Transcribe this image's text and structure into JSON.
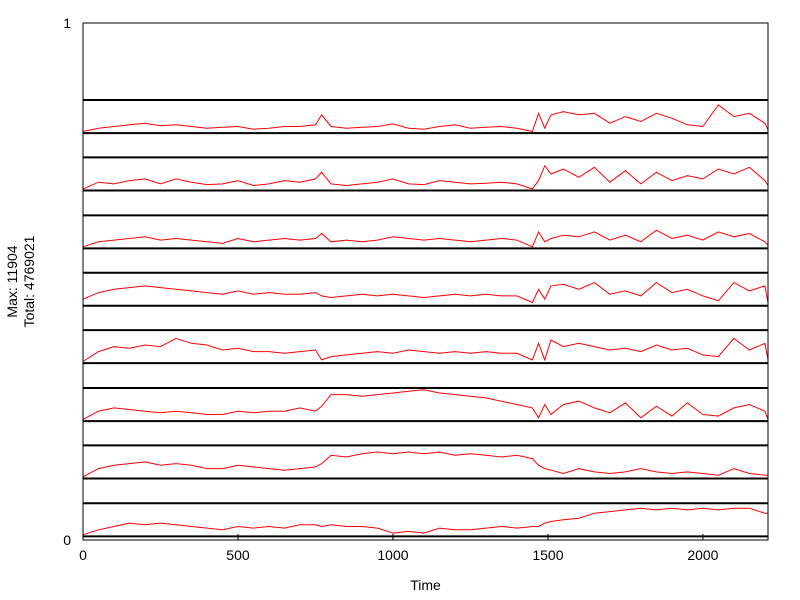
{
  "chart_data": {
    "type": "line",
    "title": "",
    "xlabel": "Time",
    "ylabel_lines": [
      "Max: 11904",
      "Total: 4769021"
    ],
    "xlim": [
      0,
      2210
    ],
    "ylim": [
      0,
      1
    ],
    "xticks": [
      "0",
      "500",
      "1000",
      "1500",
      "2000"
    ],
    "xtick_values": [
      0,
      500,
      1000,
      1500,
      2000
    ],
    "yticks": [
      "0",
      "1"
    ],
    "ytick_values": [
      0,
      1
    ],
    "grid": false,
    "legend": "none",
    "line_color": "#ff0000",
    "band_color": "#000000",
    "x": [
      0,
      50,
      100,
      150,
      200,
      250,
      300,
      350,
      400,
      450,
      500,
      550,
      600,
      650,
      700,
      750,
      770,
      800,
      850,
      900,
      950,
      1000,
      1050,
      1100,
      1150,
      1200,
      1250,
      1300,
      1350,
      1400,
      1450,
      1470,
      1490,
      1510,
      1550,
      1600,
      1650,
      1700,
      1750,
      1800,
      1850,
      1900,
      1950,
      2000,
      2050,
      2100,
      2150,
      2200,
      2210
    ],
    "bands": [
      {
        "lo": 0.787,
        "hi": 0.851
      },
      {
        "lo": 0.676,
        "hi": 0.74
      },
      {
        "lo": 0.564,
        "hi": 0.628
      },
      {
        "lo": 0.453,
        "hi": 0.517
      },
      {
        "lo": 0.342,
        "hi": 0.406
      },
      {
        "lo": 0.23,
        "hi": 0.294
      },
      {
        "lo": 0.119,
        "hi": 0.183
      },
      {
        "lo": 0.007,
        "hi": 0.071
      }
    ],
    "series": [
      {
        "values": [
          0.05,
          0.15,
          0.2,
          0.25,
          0.3,
          0.22,
          0.25,
          0.2,
          0.15,
          0.18,
          0.2,
          0.12,
          0.15,
          0.2,
          0.2,
          0.25,
          0.55,
          0.2,
          0.15,
          0.18,
          0.2,
          0.28,
          0.15,
          0.12,
          0.2,
          0.25,
          0.15,
          0.18,
          0.2,
          0.15,
          0.05,
          0.6,
          0.15,
          0.55,
          0.65,
          0.55,
          0.6,
          0.3,
          0.5,
          0.35,
          0.6,
          0.45,
          0.25,
          0.2,
          0.85,
          0.5,
          0.6,
          0.3,
          0.1
        ]
      },
      {
        "values": [
          0.05,
          0.25,
          0.2,
          0.3,
          0.35,
          0.2,
          0.35,
          0.25,
          0.18,
          0.2,
          0.3,
          0.15,
          0.2,
          0.3,
          0.25,
          0.35,
          0.55,
          0.2,
          0.15,
          0.2,
          0.25,
          0.35,
          0.2,
          0.18,
          0.3,
          0.25,
          0.2,
          0.22,
          0.25,
          0.2,
          0.05,
          0.3,
          0.75,
          0.5,
          0.65,
          0.4,
          0.7,
          0.25,
          0.6,
          0.2,
          0.55,
          0.3,
          0.45,
          0.35,
          0.65,
          0.5,
          0.7,
          0.3,
          0.15
        ]
      },
      {
        "values": [
          0.05,
          0.2,
          0.25,
          0.3,
          0.35,
          0.25,
          0.3,
          0.25,
          0.2,
          0.15,
          0.3,
          0.2,
          0.25,
          0.3,
          0.25,
          0.3,
          0.45,
          0.2,
          0.25,
          0.2,
          0.25,
          0.35,
          0.3,
          0.25,
          0.3,
          0.25,
          0.2,
          0.25,
          0.3,
          0.25,
          0.05,
          0.5,
          0.2,
          0.3,
          0.4,
          0.35,
          0.5,
          0.25,
          0.4,
          0.2,
          0.55,
          0.3,
          0.4,
          0.25,
          0.5,
          0.35,
          0.45,
          0.2,
          0.1
        ]
      },
      {
        "values": [
          0.2,
          0.4,
          0.5,
          0.55,
          0.6,
          0.55,
          0.5,
          0.45,
          0.4,
          0.35,
          0.45,
          0.35,
          0.4,
          0.35,
          0.35,
          0.4,
          0.3,
          0.25,
          0.3,
          0.35,
          0.3,
          0.35,
          0.3,
          0.25,
          0.3,
          0.35,
          0.3,
          0.35,
          0.3,
          0.3,
          0.1,
          0.5,
          0.2,
          0.6,
          0.65,
          0.5,
          0.7,
          0.35,
          0.45,
          0.3,
          0.7,
          0.4,
          0.5,
          0.3,
          0.15,
          0.7,
          0.45,
          0.6,
          0.1
        ]
      },
      {
        "values": [
          0.05,
          0.35,
          0.5,
          0.45,
          0.55,
          0.5,
          0.75,
          0.6,
          0.55,
          0.4,
          0.45,
          0.35,
          0.35,
          0.3,
          0.35,
          0.4,
          0.1,
          0.2,
          0.25,
          0.3,
          0.35,
          0.3,
          0.4,
          0.35,
          0.3,
          0.35,
          0.3,
          0.35,
          0.3,
          0.3,
          0.1,
          0.6,
          0.1,
          0.7,
          0.5,
          0.6,
          0.5,
          0.4,
          0.45,
          0.35,
          0.55,
          0.4,
          0.45,
          0.25,
          0.2,
          0.75,
          0.4,
          0.6,
          0.1
        ]
      },
      {
        "values": [
          0.05,
          0.3,
          0.4,
          0.35,
          0.3,
          0.25,
          0.3,
          0.25,
          0.2,
          0.2,
          0.3,
          0.25,
          0.3,
          0.3,
          0.4,
          0.3,
          0.45,
          0.8,
          0.8,
          0.75,
          0.8,
          0.85,
          0.9,
          0.95,
          0.85,
          0.8,
          0.75,
          0.7,
          0.6,
          0.5,
          0.4,
          0.1,
          0.5,
          0.2,
          0.5,
          0.6,
          0.4,
          0.25,
          0.55,
          0.1,
          0.45,
          0.15,
          0.55,
          0.2,
          0.15,
          0.4,
          0.5,
          0.3,
          0.05
        ]
      },
      {
        "values": [
          0.05,
          0.3,
          0.4,
          0.45,
          0.5,
          0.4,
          0.45,
          0.4,
          0.3,
          0.3,
          0.4,
          0.35,
          0.3,
          0.25,
          0.3,
          0.35,
          0.45,
          0.7,
          0.65,
          0.75,
          0.8,
          0.75,
          0.8,
          0.75,
          0.8,
          0.7,
          0.75,
          0.7,
          0.65,
          0.7,
          0.6,
          0.4,
          0.3,
          0.25,
          0.15,
          0.3,
          0.2,
          0.15,
          0.2,
          0.3,
          0.2,
          0.15,
          0.2,
          0.15,
          0.1,
          0.3,
          0.15,
          0.1,
          0.1
        ]
      },
      {
        "values": [
          0.05,
          0.2,
          0.3,
          0.4,
          0.35,
          0.4,
          0.35,
          0.3,
          0.25,
          0.2,
          0.3,
          0.25,
          0.3,
          0.25,
          0.35,
          0.35,
          0.3,
          0.35,
          0.3,
          0.3,
          0.25,
          0.1,
          0.15,
          0.1,
          0.25,
          0.2,
          0.2,
          0.25,
          0.3,
          0.25,
          0.3,
          0.3,
          0.4,
          0.45,
          0.5,
          0.55,
          0.7,
          0.75,
          0.8,
          0.85,
          0.8,
          0.85,
          0.8,
          0.85,
          0.8,
          0.85,
          0.85,
          0.7,
          0.7
        ]
      }
    ]
  }
}
